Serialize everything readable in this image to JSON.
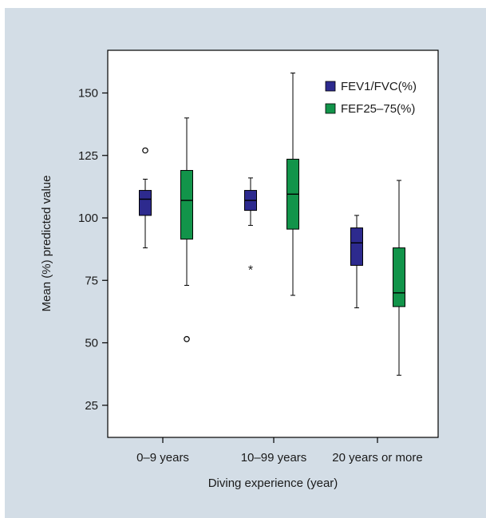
{
  "chart_data": {
    "type": "boxplot",
    "xlabel": "Diving experience (year)",
    "ylabel": "Mean (%) predicted value",
    "ylim": [
      12,
      165
    ],
    "yticks": [
      25,
      50,
      75,
      100,
      125,
      150
    ],
    "categories": [
      "0–9 years",
      "10–99 years",
      "20 years or more"
    ],
    "legend_position": "top-right",
    "grid": false,
    "series": [
      {
        "name": "FEV1/FVC(%)",
        "color": "#2d2a8e",
        "boxes": [
          {
            "whisker_low": 88,
            "q1": 101,
            "median": 107.5,
            "q3": 111,
            "whisker_high": 115.5,
            "outliers": [
              {
                "value": 127,
                "marker": "circle"
              }
            ]
          },
          {
            "whisker_low": 97,
            "q1": 103,
            "median": 107,
            "q3": 111,
            "whisker_high": 116,
            "outliers": [
              {
                "value": 80,
                "marker": "star"
              }
            ]
          },
          {
            "whisker_low": 64,
            "q1": 81,
            "median": 90,
            "q3": 96,
            "whisker_high": 101,
            "outliers": []
          }
        ]
      },
      {
        "name": "FEF25–75(%)",
        "color": "#12944a",
        "boxes": [
          {
            "whisker_low": 73,
            "q1": 91.5,
            "median": 107,
            "q3": 119,
            "whisker_high": 140,
            "outliers": [
              {
                "value": 51.5,
                "marker": "circle"
              }
            ]
          },
          {
            "whisker_low": 69,
            "q1": 95.5,
            "median": 109.5,
            "q3": 123.5,
            "whisker_high": 158,
            "outliers": []
          },
          {
            "whisker_low": 37,
            "q1": 64.5,
            "median": 70,
            "q3": 88,
            "whisker_high": 115,
            "outliers": []
          }
        ]
      }
    ]
  },
  "colors": {
    "panel_background": "#d3dde6",
    "plot_background": "#ffffff"
  }
}
